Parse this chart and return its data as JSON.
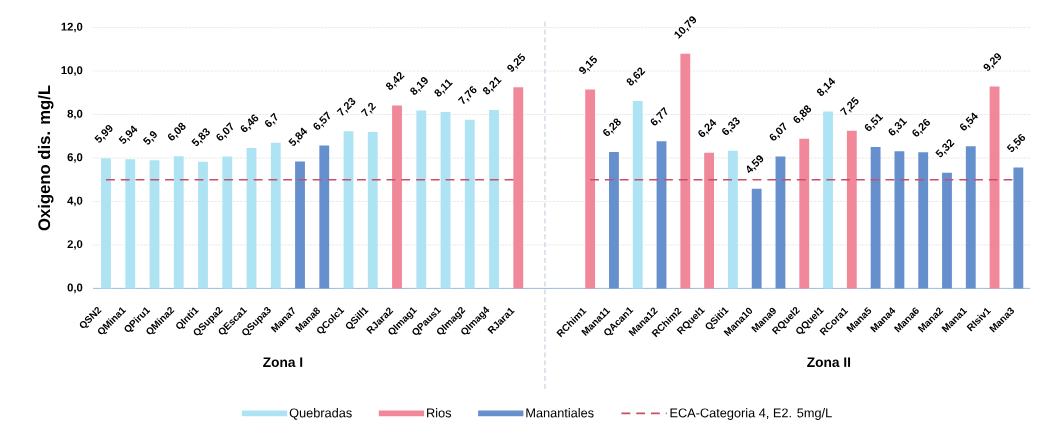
{
  "chart_data": [
    {
      "type": "bar",
      "xlabel": "Zona I",
      "ylabel": "Oxigeno dis. mg/L",
      "categories": [
        "QSN2",
        "QMina1",
        "QPiru1",
        "QMina2",
        "QInti1",
        "QSupa2",
        "QEsca1",
        "QSupa3",
        "Mana7",
        "Mana8",
        "QColc1",
        "QSill1",
        "RJara2",
        "QImag1",
        "QPaus1",
        "QImag2",
        "QImag4",
        "RJara1"
      ],
      "series": [
        {
          "name": "Quebradas",
          "color": "#aee3f3",
          "values": [
            5.99,
            5.94,
            5.9,
            6.08,
            5.83,
            6.07,
            6.46,
            6.7,
            null,
            null,
            7.23,
            7.2,
            null,
            8.19,
            8.11,
            7.76,
            8.21,
            null
          ],
          "value_labels": [
            "5,99",
            "5,94",
            "5,9",
            "6,08",
            "5,83",
            "6,07",
            "6,46",
            "6,7",
            null,
            null,
            "7,23",
            "7,2",
            null,
            "8,19",
            "8,11",
            "7,76",
            "8,21",
            null
          ]
        },
        {
          "name": "Rios",
          "color": "#f0889a",
          "values": [
            null,
            null,
            null,
            null,
            null,
            null,
            null,
            null,
            null,
            null,
            null,
            null,
            8.42,
            null,
            null,
            null,
            null,
            9.25
          ],
          "value_labels": [
            null,
            null,
            null,
            null,
            null,
            null,
            null,
            null,
            null,
            null,
            null,
            null,
            "8,42",
            null,
            null,
            null,
            null,
            "9,25"
          ]
        },
        {
          "name": "Manantiales",
          "color": "#6690cd",
          "values": [
            null,
            null,
            null,
            null,
            null,
            null,
            null,
            null,
            5.84,
            6.57,
            null,
            null,
            null,
            null,
            null,
            null,
            null,
            null
          ],
          "value_labels": [
            null,
            null,
            null,
            null,
            null,
            null,
            null,
            null,
            "5,84",
            "6,57",
            null,
            null,
            null,
            null,
            null,
            null,
            null,
            null
          ]
        }
      ],
      "stacked": true,
      "ylim": [
        0,
        12
      ],
      "yticks": [
        {
          "value": 0,
          "label": "0,0"
        },
        {
          "value": 2,
          "label": "2,0"
        },
        {
          "value": 4,
          "label": "4,0"
        },
        {
          "value": 6,
          "label": "6,0"
        },
        {
          "value": 8,
          "label": "8,0"
        },
        {
          "value": 10,
          "label": "10,0"
        },
        {
          "value": 12,
          "label": "12,0"
        }
      ],
      "grid": "y",
      "legend": "bottom",
      "ref_lines": [
        {
          "axis": "y",
          "value": 5,
          "label": "ECA-Categoria 4, E2. 5mg/L",
          "color": "#c94f68",
          "line_style": "dashed"
        }
      ]
    },
    {
      "type": "bar",
      "xlabel": "Zona II",
      "tick_labels": "x",
      "categories": [
        "RChim1",
        "Mana11",
        "QAcan1",
        "Mana12",
        "RChim2",
        "RQuel1",
        "QSiti1",
        "Mana10",
        "Mana9",
        "RQuel2",
        "QQuel1",
        "RCora1",
        "Mana5",
        "Mana4",
        "Mana6",
        "Mana2",
        "Mana1",
        "RIsiv1",
        "Mana3"
      ],
      "series": [
        {
          "color": "#aee3f3",
          "values": [
            null,
            null,
            8.62,
            null,
            null,
            null,
            6.33,
            null,
            null,
            null,
            8.14,
            null,
            null,
            null,
            null,
            null,
            null,
            null,
            null
          ],
          "value_labels": [
            null,
            null,
            "8,62",
            null,
            null,
            null,
            "6,33",
            null,
            null,
            null,
            "8,14",
            null,
            null,
            null,
            null,
            null,
            null,
            null,
            null
          ]
        },
        {
          "color": "#f0889a",
          "values": [
            9.15,
            null,
            null,
            null,
            10.79,
            6.24,
            null,
            null,
            null,
            6.88,
            null,
            7.25,
            null,
            null,
            null,
            null,
            null,
            9.29,
            null
          ],
          "value_labels": [
            "9,15",
            null,
            null,
            null,
            "10,79",
            "6,24",
            null,
            null,
            null,
            "6,88",
            null,
            "7,25",
            null,
            null,
            null,
            null,
            null,
            "9,29",
            null
          ]
        },
        {
          "color": "#6690cd",
          "values": [
            null,
            6.28,
            null,
            6.77,
            null,
            null,
            null,
            4.59,
            6.07,
            null,
            null,
            null,
            6.51,
            6.31,
            6.26,
            5.32,
            6.54,
            null,
            5.56
          ],
          "value_labels": [
            null,
            "6,28",
            null,
            "6,77",
            null,
            null,
            null,
            "4,59",
            "6,07",
            null,
            null,
            null,
            "6,51",
            "6,31",
            "6,26",
            "5,32",
            "6,54",
            null,
            "5,56"
          ]
        }
      ],
      "stacked": true,
      "ylim": [
        0,
        12
      ],
      "yticks": [
        {
          "value": 0,
          "label": null
        },
        {
          "value": 2,
          "label": null
        },
        {
          "value": 4,
          "label": null
        },
        {
          "value": 6,
          "label": null
        },
        {
          "value": 8,
          "label": null
        },
        {
          "value": 10,
          "label": null
        },
        {
          "value": 12,
          "label": null
        }
      ],
      "grid": "y",
      "ref_lines": [
        {
          "axis": "y",
          "value": 5,
          "color": "#c94f68",
          "line_style": "dashed"
        }
      ]
    }
  ]
}
